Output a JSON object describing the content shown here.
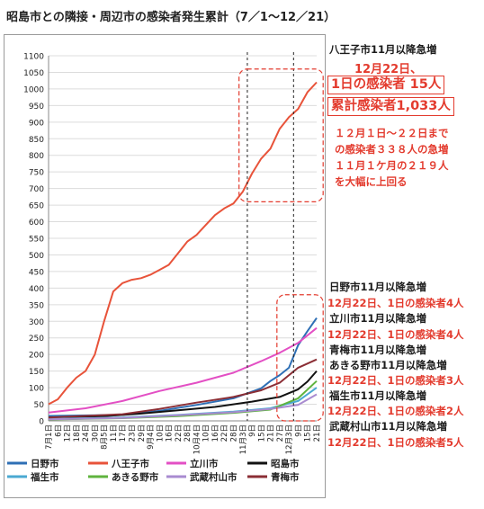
{
  "chart_data": {
    "type": "line",
    "title": "昭島市との隣接・周辺市の感染者発生累計（7／1〜12／21）",
    "ylim": [
      0,
      1100
    ],
    "y_ticks": [
      0,
      50,
      100,
      150,
      200,
      250,
      300,
      350,
      400,
      450,
      500,
      550,
      600,
      650,
      700,
      750,
      800,
      850,
      900,
      950,
      1000,
      1050,
      1100
    ],
    "x_tick_labels": [
      "7月1日",
      "6日",
      "12日",
      "18日",
      "24日",
      "30日",
      "8月5日",
      "11日",
      "17日",
      "23日",
      "29日",
      "9月4日",
      "10日",
      "16日",
      "22日",
      "28日",
      "10月4日",
      "10日",
      "16日",
      "22日",
      "28日",
      "11月3日",
      "9日",
      "15日",
      "21日",
      "27日",
      "12月3日",
      "9日",
      "15日",
      "21日"
    ],
    "grid": true,
    "legend_position": "bottom",
    "series": [
      {
        "name": "日野市",
        "color": "#2e6fb5",
        "points": [
          [
            0,
            15
          ],
          [
            8,
            18
          ],
          [
            12,
            30
          ],
          [
            16,
            48
          ],
          [
            20,
            68
          ],
          [
            23,
            98
          ],
          [
            24,
            120
          ],
          [
            25,
            138
          ],
          [
            26,
            160
          ],
          [
            27,
            228
          ],
          [
            28,
            270
          ],
          [
            29,
            310
          ]
        ]
      },
      {
        "name": "八王子市",
        "color": "#e8533a",
        "points": [
          [
            0,
            50
          ],
          [
            1,
            65
          ],
          [
            2,
            100
          ],
          [
            3,
            130
          ],
          [
            4,
            150
          ],
          [
            5,
            200
          ],
          [
            6,
            300
          ],
          [
            7,
            390
          ],
          [
            8,
            415
          ],
          [
            9,
            425
          ],
          [
            10,
            430
          ],
          [
            11,
            440
          ],
          [
            12,
            455
          ],
          [
            13,
            470
          ],
          [
            14,
            505
          ],
          [
            15,
            540
          ],
          [
            16,
            560
          ],
          [
            17,
            590
          ],
          [
            18,
            620
          ],
          [
            19,
            640
          ],
          [
            20,
            655
          ],
          [
            21,
            690
          ],
          [
            22,
            745
          ],
          [
            23,
            790
          ],
          [
            24,
            820
          ],
          [
            25,
            880
          ],
          [
            26,
            915
          ],
          [
            27,
            940
          ],
          [
            28,
            990
          ],
          [
            29,
            1020
          ]
        ]
      },
      {
        "name": "立川市",
        "color": "#e34fc4",
        "points": [
          [
            0,
            25
          ],
          [
            4,
            38
          ],
          [
            8,
            60
          ],
          [
            12,
            90
          ],
          [
            16,
            115
          ],
          [
            20,
            145
          ],
          [
            23,
            180
          ],
          [
            25,
            205
          ],
          [
            27,
            235
          ],
          [
            29,
            280
          ]
        ]
      },
      {
        "name": "昭島市",
        "color": "#111111",
        "points": [
          [
            0,
            10
          ],
          [
            6,
            14
          ],
          [
            10,
            22
          ],
          [
            14,
            32
          ],
          [
            18,
            42
          ],
          [
            22,
            58
          ],
          [
            25,
            72
          ],
          [
            27,
            95
          ],
          [
            28,
            118
          ],
          [
            29,
            150
          ]
        ]
      },
      {
        "name": "福生市",
        "color": "#4aa9d2",
        "points": [
          [
            0,
            6
          ],
          [
            8,
            10
          ],
          [
            14,
            18
          ],
          [
            20,
            28
          ],
          [
            24,
            38
          ],
          [
            27,
            60
          ],
          [
            29,
            100
          ]
        ]
      },
      {
        "name": "あきる野市",
        "color": "#5fb33e",
        "points": [
          [
            0,
            4
          ],
          [
            8,
            8
          ],
          [
            14,
            14
          ],
          [
            20,
            24
          ],
          [
            24,
            34
          ],
          [
            27,
            68
          ],
          [
            29,
            120
          ]
        ]
      },
      {
        "name": "武蔵村山市",
        "color": "#a98bd0",
        "points": [
          [
            0,
            5
          ],
          [
            8,
            9
          ],
          [
            14,
            17
          ],
          [
            20,
            26
          ],
          [
            24,
            36
          ],
          [
            27,
            48
          ],
          [
            29,
            80
          ]
        ]
      },
      {
        "name": "青梅市",
        "color": "#8b2e35",
        "points": [
          [
            0,
            10
          ],
          [
            8,
            20
          ],
          [
            12,
            36
          ],
          [
            16,
            55
          ],
          [
            20,
            72
          ],
          [
            23,
            92
          ],
          [
            25,
            115
          ],
          [
            27,
            160
          ],
          [
            29,
            185
          ]
        ]
      }
    ]
  },
  "annotations": {
    "hachioji_head": "八王子市11月以降急増",
    "hachioji_date": "12月22日、",
    "hachioji_daily": "1日の感染者 15人",
    "hachioji_total": "累計感染者1,033人",
    "hachioji_note1": "１２月１日～２２日まで",
    "hachioji_note2": "の感染者３３８人の急増",
    "hachioji_note3": "１１月１ケ月の２１９人",
    "hachioji_note4": "を大幅に上回る",
    "hino_head": "日野市11月以降急増",
    "hino_sub": "12月22日、1日の感染者4人",
    "tachikawa_head": "立川市11月以降急増",
    "tachikawa_sub": "12月22日、1日の感染者4人",
    "ome_head": "青梅市11月以降急増",
    "akiruno_head": "あきる野市11月以降急増",
    "akiruno_sub": "12月22日、1日の感染者3人",
    "fussa_head": "福生市11月以降急増",
    "fussa_sub": "12月22日、1日の感染者2人",
    "musashimurayama_head": "武蔵村山市11月以降急増",
    "musashimurayama_sub": "12月22日、1日の感染者5人"
  }
}
